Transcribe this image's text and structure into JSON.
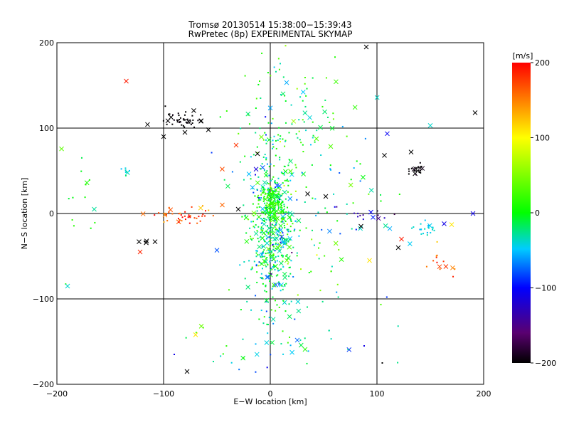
{
  "chart_data": {
    "type": "scatter",
    "title": "Tromsø 20130514 15:38:00−15:39:43",
    "subtitle": "RwPretec (8p) EXPERIMENTAL SKYMAP",
    "xlabel": "E−W location [km]",
    "ylabel": "N−S location [km]",
    "xlim": [
      -200,
      200
    ],
    "ylim": [
      -200,
      200
    ],
    "xticks": [
      -200,
      -100,
      0,
      100,
      200
    ],
    "yticks": [
      -200,
      -100,
      0,
      100,
      200
    ],
    "xtick_labels": [
      "−200",
      "−100",
      "0",
      "100",
      "200"
    ],
    "ytick_labels": [
      "−200",
      "−100",
      "0",
      "100",
      "200"
    ],
    "grid": true,
    "colorbar": {
      "label": "[m/s]",
      "range": [
        -200,
        200
      ],
      "ticks": [
        200,
        100,
        0,
        -100,
        -200
      ],
      "tick_labels": [
        "200",
        "100",
        "0",
        "−100",
        "−200"
      ],
      "colors": [
        "#000000",
        "#5a0070",
        "#0000ff",
        "#00ccff",
        "#00ff00",
        "#ffff00",
        "#ff0000"
      ]
    },
    "markers": {
      "small": "dot",
      "large": "x"
    },
    "clusters": [
      {
        "name": "central-column",
        "x": 2,
        "y": -20,
        "sx": 12,
        "sy": 45,
        "n": 520,
        "v": -20,
        "sv": 35
      },
      {
        "name": "central-blob",
        "x": 2,
        "y": 10,
        "sx": 6,
        "sy": 12,
        "n": 140,
        "v": 10,
        "sv": 15
      },
      {
        "name": "upper-column",
        "x": 15,
        "y": 110,
        "sx": 25,
        "sy": 45,
        "n": 120,
        "v": -10,
        "sv": 35
      },
      {
        "name": "right-spread",
        "x": 55,
        "y": 0,
        "sx": 35,
        "sy": 60,
        "n": 80,
        "v": -30,
        "sv": 50
      },
      {
        "name": "black-nw",
        "x": -85,
        "y": 110,
        "sx": 10,
        "sy": 5,
        "n": 45,
        "v": -200,
        "sv": 5
      },
      {
        "name": "black-ne",
        "x": 137,
        "y": 50,
        "sx": 5,
        "sy": 5,
        "n": 20,
        "v": -200,
        "sv": 5
      },
      {
        "name": "red-west",
        "x": -80,
        "y": -3,
        "sx": 15,
        "sy": 5,
        "n": 45,
        "v": 170,
        "sv": 25
      },
      {
        "name": "red-se",
        "x": 160,
        "y": -55,
        "sx": 10,
        "sy": 10,
        "n": 14,
        "v": 165,
        "sv": 25
      },
      {
        "name": "cyan-east",
        "x": 148,
        "y": -18,
        "sx": 6,
        "sy": 4,
        "n": 22,
        "v": -45,
        "sv": 10
      },
      {
        "name": "cyan-west",
        "x": -135,
        "y": 50,
        "sx": 3,
        "sy": 3,
        "n": 8,
        "v": -40,
        "sv": 10
      },
      {
        "name": "purple-east",
        "x": 95,
        "y": 0,
        "sx": 10,
        "sy": 4,
        "n": 12,
        "v": -150,
        "sv": 20
      },
      {
        "name": "left-green",
        "x": -180,
        "y": 10,
        "sx": 10,
        "sy": 50,
        "n": 14,
        "v": 10,
        "sv": 15
      },
      {
        "name": "lower-green",
        "x": -70,
        "y": -135,
        "sx": 8,
        "sy": 8,
        "n": 4,
        "v": 20,
        "sv": 20
      },
      {
        "name": "black-sw",
        "x": -115,
        "y": -33,
        "sx": 5,
        "sy": 2,
        "n": 3,
        "v": -200,
        "sv": 5
      },
      {
        "name": "scatter-low",
        "x": 10,
        "y": -150,
        "sx": 40,
        "sy": 30,
        "n": 40,
        "v": -20,
        "sv": 40
      }
    ],
    "points": [
      {
        "x": -135,
        "y": 155,
        "v": 190,
        "m": "x"
      },
      {
        "x": -122,
        "y": -45,
        "v": 185,
        "m": "x"
      },
      {
        "x": 90,
        "y": 195,
        "v": -200,
        "m": "x"
      },
      {
        "x": 192,
        "y": 118,
        "v": -200,
        "m": "x"
      },
      {
        "x": -78,
        "y": -185,
        "v": -200,
        "m": "x"
      },
      {
        "x": 105,
        "y": -175,
        "v": -200,
        "m": "dot"
      },
      {
        "x": -90,
        "y": -165,
        "v": -110,
        "m": "dot"
      },
      {
        "x": 88,
        "y": -155,
        "v": -110,
        "m": "dot"
      },
      {
        "x": 190,
        "y": 0,
        "v": -110,
        "m": "x"
      },
      {
        "x": 163,
        "y": -12,
        "v": -110,
        "m": "x"
      },
      {
        "x": -165,
        "y": 5,
        "v": -30,
        "m": "x"
      },
      {
        "x": -190,
        "y": -85,
        "v": -40,
        "m": "x"
      },
      {
        "x": -50,
        "y": -43,
        "v": -80,
        "m": "x"
      },
      {
        "x": 150,
        "y": 103,
        "v": -40,
        "m": "x"
      },
      {
        "x": -65,
        "y": 108,
        "v": -200,
        "m": "x"
      },
      {
        "x": -58,
        "y": 98,
        "v": -200,
        "m": "x"
      },
      {
        "x": -100,
        "y": 90,
        "v": -200,
        "m": "x"
      },
      {
        "x": -80,
        "y": 95,
        "v": -200,
        "m": "x"
      },
      {
        "x": 35,
        "y": 23,
        "v": -200,
        "m": "x"
      },
      {
        "x": 52,
        "y": 20,
        "v": -200,
        "m": "x"
      },
      {
        "x": 85,
        "y": -15,
        "v": -200,
        "m": "x"
      },
      {
        "x": 107,
        "y": 68,
        "v": -200,
        "m": "x"
      },
      {
        "x": 132,
        "y": 72,
        "v": -200,
        "m": "x"
      },
      {
        "x": 120,
        "y": -40,
        "v": -200,
        "m": "x"
      },
      {
        "x": -108,
        "y": -33,
        "v": -200,
        "m": "x"
      },
      {
        "x": -123,
        "y": -33,
        "v": -200,
        "m": "x"
      },
      {
        "x": -30,
        "y": 5,
        "v": -200,
        "m": "x"
      },
      {
        "x": -12,
        "y": 70,
        "v": -200,
        "m": "x"
      },
      {
        "x": -32,
        "y": 80,
        "v": 180,
        "m": "x"
      },
      {
        "x": -45,
        "y": 52,
        "v": 170,
        "m": "x"
      },
      {
        "x": -45,
        "y": 10,
        "v": 160,
        "m": "x"
      },
      {
        "x": 123,
        "y": -30,
        "v": 190,
        "m": "x"
      },
      {
        "x": 170,
        "y": -13,
        "v": 110,
        "m": "x"
      },
      {
        "x": 93,
        "y": -55,
        "v": 110,
        "m": "x"
      },
      {
        "x": -70,
        "y": -142,
        "v": 110,
        "m": "x"
      }
    ]
  }
}
